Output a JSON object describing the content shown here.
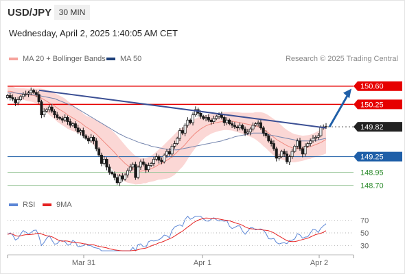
{
  "header": {
    "symbol": "USD/JPY",
    "timeframe": "30 MIN",
    "datetime": "Wednesday, April 2, 2025 1:40:05 AM CET"
  },
  "legend": {
    "ma20": "MA 20 + Bollinger Bands",
    "ma50": "MA 50",
    "copyright": "Research © 2025 Trading Central"
  },
  "rsi_legend": {
    "rsi": "RSI",
    "ma9": "9MA"
  },
  "colors": {
    "resistance": "#e60000",
    "support": "#1f5fa8",
    "support_green": "#2a8a2a",
    "ma20_band": "#f7b7b2",
    "ma20": "#f08a80",
    "ma50": "#1d3f7a",
    "trendline": "#3b4f94",
    "bull_candle": "#ffffff",
    "bear_candle": "#1a1a1a",
    "current_price": "#222222",
    "rsi": "#5b86d6",
    "rsi_ma": "#e52222",
    "arrow": "#1f5fa8"
  },
  "chart_data": {
    "type": "candlestick",
    "ylim": [
      148.55,
      150.78
    ],
    "x_ticks": [
      "Mar 31",
      "Apr 1",
      "Apr 2"
    ],
    "current_price": 149.82,
    "levels": [
      {
        "value": 150.6,
        "label": "150.60",
        "kind": "resistance"
      },
      {
        "value": 150.25,
        "label": "150.25",
        "kind": "resistance"
      },
      {
        "value": 149.82,
        "label": "149.82",
        "kind": "current"
      },
      {
        "value": 149.25,
        "label": "149.25",
        "kind": "support"
      },
      {
        "value": 148.95,
        "label": "148.95",
        "kind": "support-minor"
      },
      {
        "value": 148.7,
        "label": "148.70",
        "kind": "support-minor"
      }
    ],
    "candles_close": [
      150.42,
      150.38,
      150.35,
      150.28,
      150.34,
      150.4,
      150.44,
      150.45,
      150.47,
      150.52,
      150.48,
      150.44,
      150.3,
      150.05,
      150.12,
      150.15,
      150.2,
      150.12,
      150.05,
      150.0,
      149.98,
      149.95,
      150.0,
      149.92,
      149.85,
      149.88,
      149.8,
      149.72,
      149.75,
      149.65,
      149.6,
      149.55,
      149.62,
      149.55,
      149.4,
      149.28,
      149.12,
      149.2,
      149.05,
      148.95,
      148.92,
      148.85,
      148.75,
      148.88,
      148.82,
      148.9,
      148.98,
      149.05,
      149.1,
      148.85,
      149.05,
      149.15,
      149.1,
      149.0,
      149.08,
      149.12,
      149.2,
      149.25,
      149.18,
      149.15,
      149.28,
      149.35,
      149.3,
      149.45,
      149.5,
      149.6,
      149.75,
      149.7,
      149.85,
      149.95,
      149.9,
      150.05,
      150.15,
      150.08,
      150.02,
      149.98,
      150.0,
      149.95,
      149.92,
      149.98,
      150.02,
      150.05,
      150.0,
      149.9,
      149.95,
      149.88,
      149.85,
      149.82,
      149.8,
      149.85,
      149.78,
      149.7,
      149.72,
      149.78,
      149.85,
      149.88,
      149.9,
      149.8,
      149.7,
      149.65,
      149.55,
      149.5,
      149.4,
      149.22,
      149.25,
      149.35,
      149.3,
      149.15,
      149.25,
      149.35,
      149.45,
      149.55,
      149.4,
      149.3,
      149.45,
      149.5,
      149.55,
      149.6,
      149.62,
      149.65,
      149.82,
      149.82,
      149.83
    ],
    "ma20": [
      150.5,
      150.5,
      150.49,
      150.47,
      150.46,
      150.45,
      150.45,
      150.44,
      150.43,
      150.43,
      150.42,
      150.41,
      150.4,
      150.37,
      150.34,
      150.31,
      150.28,
      150.25,
      150.22,
      150.18,
      150.15,
      150.12,
      150.09,
      150.05,
      150.02,
      149.99,
      149.96,
      149.93,
      149.9,
      149.86,
      149.82,
      149.79,
      149.76,
      149.72,
      149.68,
      149.63,
      149.58,
      149.53,
      149.48,
      149.43,
      149.38,
      149.33,
      149.27,
      149.22,
      149.17,
      149.12,
      149.08,
      149.05,
      149.02,
      148.99,
      148.98,
      148.97,
      148.98,
      148.98,
      149.0,
      149.02,
      149.04,
      149.07,
      149.1,
      149.12,
      149.15,
      149.18,
      149.21,
      149.25,
      149.29,
      149.34,
      149.39,
      149.43,
      149.48,
      149.54,
      149.6,
      149.65,
      149.7,
      149.74,
      149.78,
      149.81,
      149.84,
      149.86,
      149.88,
      149.89,
      149.9,
      149.91,
      149.92,
      149.93,
      149.93,
      149.93,
      149.93,
      149.92,
      149.91,
      149.9,
      149.89,
      149.88,
      149.87,
      149.86,
      149.85,
      149.84,
      149.82,
      149.8,
      149.77,
      149.74,
      149.7,
      149.66,
      149.62,
      149.58,
      149.55,
      149.52,
      149.49,
      149.46,
      149.44,
      149.42,
      149.41,
      149.41,
      149.41,
      149.41,
      149.42,
      149.43,
      149.44,
      149.46,
      149.48,
      149.5,
      149.52,
      149.55,
      149.58
    ],
    "band_width": [
      0.2,
      0.2,
      0.2,
      0.2,
      0.21,
      0.22,
      0.22,
      0.23,
      0.24,
      0.25,
      0.26,
      0.28,
      0.31,
      0.36,
      0.4,
      0.43,
      0.46,
      0.48,
      0.5,
      0.52,
      0.53,
      0.54,
      0.54,
      0.53,
      0.52,
      0.5,
      0.48,
      0.46,
      0.44,
      0.43,
      0.43,
      0.45,
      0.47,
      0.5,
      0.54,
      0.58,
      0.62,
      0.66,
      0.7,
      0.72,
      0.74,
      0.75,
      0.76,
      0.74,
      0.72,
      0.7,
      0.66,
      0.62,
      0.58,
      0.55,
      0.52,
      0.5,
      0.48,
      0.48,
      0.48,
      0.5,
      0.52,
      0.55,
      0.58,
      0.62,
      0.66,
      0.7,
      0.74,
      0.76,
      0.78,
      0.78,
      0.77,
      0.75,
      0.72,
      0.68,
      0.64,
      0.6,
      0.56,
      0.52,
      0.48,
      0.45,
      0.42,
      0.4,
      0.38,
      0.36,
      0.35,
      0.34,
      0.34,
      0.34,
      0.34,
      0.35,
      0.36,
      0.37,
      0.38,
      0.39,
      0.4,
      0.42,
      0.44,
      0.46,
      0.48,
      0.52,
      0.56,
      0.6,
      0.64,
      0.66,
      0.68,
      0.69,
      0.7,
      0.7,
      0.68,
      0.65,
      0.62,
      0.6,
      0.58,
      0.56,
      0.54,
      0.52,
      0.5,
      0.48,
      0.47,
      0.46,
      0.46,
      0.46,
      0.47,
      0.48,
      0.5,
      0.52,
      0.54
    ],
    "ma50": [
      150.47,
      150.47,
      150.47,
      150.47,
      150.46,
      150.46,
      150.45,
      150.45,
      150.44,
      150.44,
      150.43,
      150.43,
      150.42,
      150.41,
      150.4,
      150.39,
      150.38,
      150.37,
      150.36,
      150.34,
      150.32,
      150.3,
      150.28,
      150.26,
      150.24,
      150.22,
      150.19,
      150.16,
      150.13,
      150.1,
      150.07,
      150.04,
      150.01,
      149.98,
      149.95,
      149.92,
      149.89,
      149.86,
      149.83,
      149.8,
      149.77,
      149.74,
      149.71,
      149.68,
      149.66,
      149.63,
      149.61,
      149.59,
      149.57,
      149.55,
      149.53,
      149.51,
      149.5,
      149.48,
      149.47,
      149.45,
      149.44,
      149.43,
      149.42,
      149.41,
      149.4,
      149.39,
      149.39,
      149.38,
      149.38,
      149.38,
      149.39,
      149.4,
      149.41,
      149.42,
      149.43,
      149.44,
      149.45,
      149.46,
      149.47,
      149.48,
      149.49,
      149.5,
      149.51,
      149.52,
      149.53,
      149.54,
      149.55,
      149.57,
      149.58,
      149.6,
      149.61,
      149.63,
      149.64,
      149.65,
      149.66,
      149.67,
      149.68,
      149.69,
      149.7,
      149.7,
      149.7,
      149.7,
      149.69,
      149.68,
      149.67,
      149.66,
      149.65,
      149.64,
      149.63,
      149.62,
      149.61,
      149.6,
      149.59,
      149.58,
      149.57,
      149.56,
      149.55,
      149.55,
      149.55,
      149.55,
      149.55,
      149.56,
      149.56,
      149.57,
      149.58,
      149.59,
      149.6
    ],
    "trendline": [
      [
        9,
        150.52
      ],
      [
        95,
        149.7
      ]
    ],
    "forecast_arrow": {
      "from": 149.82,
      "to": 150.55
    },
    "rsi": {
      "ticks": [
        70,
        50,
        30
      ],
      "ylim": [
        20,
        80
      ]
    }
  }
}
